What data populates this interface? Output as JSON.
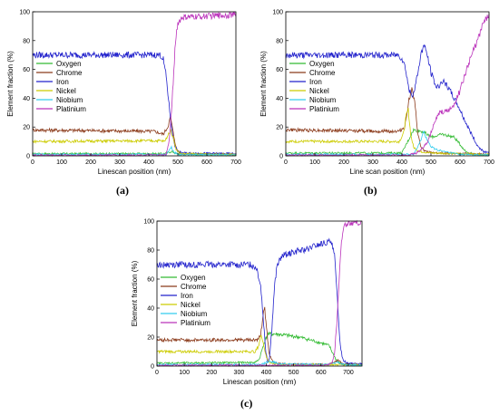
{
  "chart_data": [
    {
      "type": "line",
      "caption": "(a)",
      "xlabel": "Linescan position (nm)",
      "ylabel": "Element fraction (%)",
      "xlim": [
        0,
        700
      ],
      "ylim": [
        0,
        100
      ],
      "xticks": [
        "0",
        "100",
        "200",
        "300",
        "400",
        "500",
        "600",
        "700"
      ],
      "yticks": [
        "0",
        "20",
        "40",
        "60",
        "80",
        "100"
      ],
      "legend_position": "bottom-left",
      "series": [
        {
          "name": "Oxygen",
          "color": "#33bb33",
          "points": [
            [
              0,
              1.5
            ],
            [
              450,
              1.5
            ],
            [
              470,
              2.5
            ],
            [
              480,
              3
            ],
            [
              490,
              2
            ],
            [
              510,
              1
            ],
            [
              700,
              1
            ]
          ]
        },
        {
          "name": "Chrome",
          "color": "#8b3a1a",
          "points": [
            [
              0,
              18
            ],
            [
              420,
              17
            ],
            [
              450,
              15
            ],
            [
              465,
              20
            ],
            [
              475,
              27
            ],
            [
              485,
              15
            ],
            [
              495,
              5
            ],
            [
              510,
              1.5
            ],
            [
              700,
              1
            ]
          ]
        },
        {
          "name": "Iron",
          "color": "#2222cc",
          "points": [
            [
              0,
              70
            ],
            [
              440,
              70
            ],
            [
              450,
              67
            ],
            [
              460,
              55
            ],
            [
              470,
              35
            ],
            [
              480,
              17
            ],
            [
              490,
              7
            ],
            [
              500,
              3
            ],
            [
              520,
              2
            ],
            [
              700,
              1.5
            ]
          ]
        },
        {
          "name": "Nickel",
          "color": "#cccc00",
          "points": [
            [
              0,
              10
            ],
            [
              440,
              10.5
            ],
            [
              455,
              10
            ],
            [
              465,
              14
            ],
            [
              475,
              18
            ],
            [
              485,
              12
            ],
            [
              495,
              4
            ],
            [
              510,
              1.5
            ],
            [
              700,
              1
            ]
          ]
        },
        {
          "name": "Niobium",
          "color": "#33ccee",
          "points": [
            [
              0,
              1
            ],
            [
              460,
              1
            ],
            [
              470,
              4
            ],
            [
              478,
              6
            ],
            [
              486,
              3
            ],
            [
              500,
              1
            ],
            [
              700,
              0.5
            ]
          ]
        },
        {
          "name": "Platinium",
          "color": "#bb33bb",
          "points": [
            [
              0,
              0.5
            ],
            [
              450,
              0.5
            ],
            [
              460,
              1
            ],
            [
              470,
              10
            ],
            [
              478,
              30
            ],
            [
              485,
              55
            ],
            [
              492,
              80
            ],
            [
              500,
              92
            ],
            [
              515,
              96
            ],
            [
              600,
              97
            ],
            [
              700,
              98
            ]
          ]
        }
      ]
    },
    {
      "type": "line",
      "caption": "(b)",
      "xlabel": "Line scan position (nm)",
      "ylabel": "Element fraction (%)",
      "xlim": [
        0,
        700
      ],
      "ylim": [
        0,
        100
      ],
      "xticks": [
        "0",
        "100",
        "200",
        "300",
        "400",
        "500",
        "600",
        "700"
      ],
      "yticks": [
        "0",
        "20",
        "40",
        "60",
        "80",
        "100"
      ],
      "legend_position": "top-left",
      "series": [
        {
          "name": "Oxygen",
          "color": "#33bb33",
          "points": [
            [
              0,
              2
            ],
            [
              400,
              2
            ],
            [
              420,
              10
            ],
            [
              440,
              18
            ],
            [
              470,
              17
            ],
            [
              500,
              13
            ],
            [
              540,
              15
            ],
            [
              580,
              13
            ],
            [
              600,
              8
            ],
            [
              620,
              3
            ],
            [
              650,
              1
            ],
            [
              700,
              0.5
            ]
          ]
        },
        {
          "name": "Chrome",
          "color": "#8b3a1a",
          "points": [
            [
              0,
              18
            ],
            [
              390,
              17
            ],
            [
              410,
              20
            ],
            [
              425,
              40
            ],
            [
              435,
              46
            ],
            [
              445,
              35
            ],
            [
              455,
              15
            ],
            [
              465,
              6
            ],
            [
              480,
              3
            ],
            [
              520,
              2
            ],
            [
              700,
              1
            ]
          ]
        },
        {
          "name": "Iron",
          "color": "#2222cc",
          "points": [
            [
              0,
              70
            ],
            [
              390,
              70
            ],
            [
              405,
              66
            ],
            [
              415,
              58
            ],
            [
              425,
              45
            ],
            [
              440,
              42
            ],
            [
              455,
              58
            ],
            [
              465,
              70
            ],
            [
              475,
              77
            ],
            [
              485,
              72
            ],
            [
              500,
              58
            ],
            [
              520,
              47
            ],
            [
              540,
              52
            ],
            [
              560,
              47
            ],
            [
              580,
              40
            ],
            [
              600,
              32
            ],
            [
              620,
              23
            ],
            [
              640,
              15
            ],
            [
              660,
              7
            ],
            [
              680,
              3
            ],
            [
              700,
              2
            ]
          ]
        },
        {
          "name": "Nickel",
          "color": "#cccc00",
          "points": [
            [
              0,
              10
            ],
            [
              390,
              10
            ],
            [
              405,
              15
            ],
            [
              415,
              28
            ],
            [
              422,
              32
            ],
            [
              430,
              15
            ],
            [
              440,
              6
            ],
            [
              460,
              3
            ],
            [
              500,
              2
            ],
            [
              700,
              1
            ]
          ]
        },
        {
          "name": "Niobium",
          "color": "#33ccee",
          "points": [
            [
              0,
              1
            ],
            [
              440,
              1
            ],
            [
              460,
              8
            ],
            [
              475,
              17
            ],
            [
              485,
              12
            ],
            [
              500,
              6
            ],
            [
              540,
              3
            ],
            [
              600,
              1
            ],
            [
              700,
              0.5
            ]
          ]
        },
        {
          "name": "Platinium",
          "color": "#bb33bb",
          "points": [
            [
              0,
              0.5
            ],
            [
              420,
              0.5
            ],
            [
              450,
              2
            ],
            [
              470,
              5
            ],
            [
              490,
              10
            ],
            [
              510,
              22
            ],
            [
              530,
              30
            ],
            [
              555,
              31
            ],
            [
              575,
              34
            ],
            [
              600,
              45
            ],
            [
              620,
              58
            ],
            [
              640,
              70
            ],
            [
              660,
              80
            ],
            [
              680,
              92
            ],
            [
              700,
              98
            ]
          ]
        }
      ]
    },
    {
      "type": "line",
      "caption": "(c)",
      "xlabel": "Linescan position (nm)",
      "ylabel": "Element fraction (%)",
      "xlim": [
        0,
        750
      ],
      "ylim": [
        0,
        100
      ],
      "xticks": [
        "0",
        "100",
        "200",
        "300",
        "400",
        "500",
        "600",
        "700"
      ],
      "yticks": [
        "0",
        "20",
        "40",
        "60",
        "80",
        "100"
      ],
      "legend_position": "top-center",
      "series": [
        {
          "name": "Oxygen",
          "color": "#33bb33",
          "points": [
            [
              0,
              2
            ],
            [
              360,
              2.5
            ],
            [
              375,
              5
            ],
            [
              390,
              15
            ],
            [
              405,
              22
            ],
            [
              440,
              22
            ],
            [
              480,
              21
            ],
            [
              520,
              20
            ],
            [
              560,
              18
            ],
            [
              600,
              16
            ],
            [
              630,
              14
            ],
            [
              645,
              8
            ],
            [
              660,
              3
            ],
            [
              680,
              1
            ],
            [
              750,
              0.5
            ]
          ]
        },
        {
          "name": "Chrome",
          "color": "#8b3a1a",
          "points": [
            [
              0,
              18
            ],
            [
              370,
              18
            ],
            [
              380,
              22
            ],
            [
              388,
              35
            ],
            [
              393,
              42
            ],
            [
              400,
              28
            ],
            [
              410,
              8
            ],
            [
              425,
              3
            ],
            [
              450,
              1.5
            ],
            [
              620,
              1
            ],
            [
              650,
              3
            ],
            [
              665,
              4
            ],
            [
              680,
              1.5
            ],
            [
              750,
              1
            ]
          ]
        },
        {
          "name": "Iron",
          "color": "#2222cc",
          "points": [
            [
              0,
              70
            ],
            [
              340,
              70
            ],
            [
              365,
              68
            ],
            [
              380,
              55
            ],
            [
              390,
              30
            ],
            [
              398,
              10
            ],
            [
              405,
              3
            ],
            [
              412,
              6
            ],
            [
              420,
              25
            ],
            [
              430,
              55
            ],
            [
              440,
              70
            ],
            [
              460,
              76
            ],
            [
              500,
              79
            ],
            [
              540,
              80
            ],
            [
              580,
              83
            ],
            [
              620,
              85
            ],
            [
              640,
              86
            ],
            [
              650,
              75
            ],
            [
              660,
              45
            ],
            [
              670,
              15
            ],
            [
              680,
              4
            ],
            [
              700,
              2
            ],
            [
              750,
              1.5
            ]
          ]
        },
        {
          "name": "Nickel",
          "color": "#cccc00",
          "points": [
            [
              0,
              10
            ],
            [
              360,
              10
            ],
            [
              372,
              14
            ],
            [
              382,
              22
            ],
            [
              390,
              15
            ],
            [
              400,
              6
            ],
            [
              415,
              2
            ],
            [
              450,
              1
            ],
            [
              750,
              1
            ]
          ]
        },
        {
          "name": "Niobium",
          "color": "#33ccee",
          "points": [
            [
              0,
              1
            ],
            [
              380,
              1
            ],
            [
              400,
              2.5
            ],
            [
              420,
              3
            ],
            [
              450,
              1.5
            ],
            [
              620,
              1
            ],
            [
              650,
              2
            ],
            [
              660,
              3
            ],
            [
              680,
              1
            ],
            [
              750,
              0.5
            ]
          ]
        },
        {
          "name": "Platinium",
          "color": "#bb33bb",
          "points": [
            [
              0,
              0.5
            ],
            [
              620,
              0.5
            ],
            [
              640,
              2
            ],
            [
              650,
              10
            ],
            [
              658,
              30
            ],
            [
              665,
              55
            ],
            [
              672,
              80
            ],
            [
              680,
              93
            ],
            [
              690,
              98
            ],
            [
              720,
              99
            ],
            [
              750,
              99
            ]
          ]
        }
      ]
    }
  ]
}
